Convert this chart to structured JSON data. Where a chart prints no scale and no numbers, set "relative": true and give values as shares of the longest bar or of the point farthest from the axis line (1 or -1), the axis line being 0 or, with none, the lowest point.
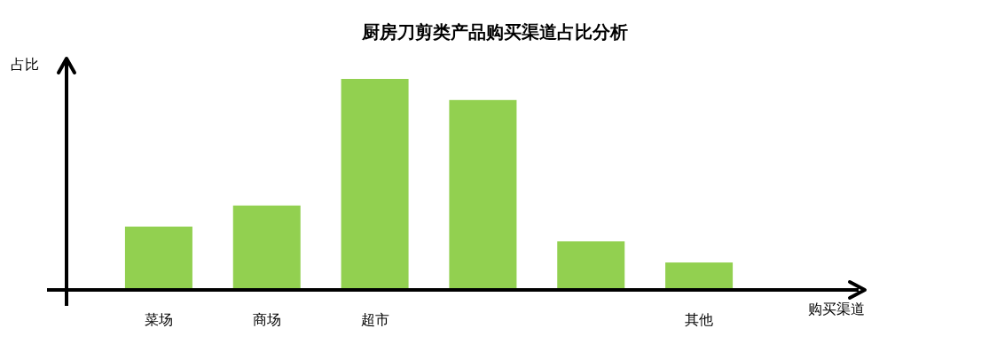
{
  "chart_data": {
    "type": "bar",
    "title": "厨房刀剪类产品购买渠道占比分析",
    "xlabel": "购买渠道",
    "ylabel": "占比",
    "categories": [
      "菜场",
      "商场",
      "超市",
      null,
      null,
      "其他"
    ],
    "values": [
      0.3,
      0.4,
      1,
      0.9,
      0.23,
      0.13
    ],
    "color": "#92d050",
    "relative": true
  }
}
